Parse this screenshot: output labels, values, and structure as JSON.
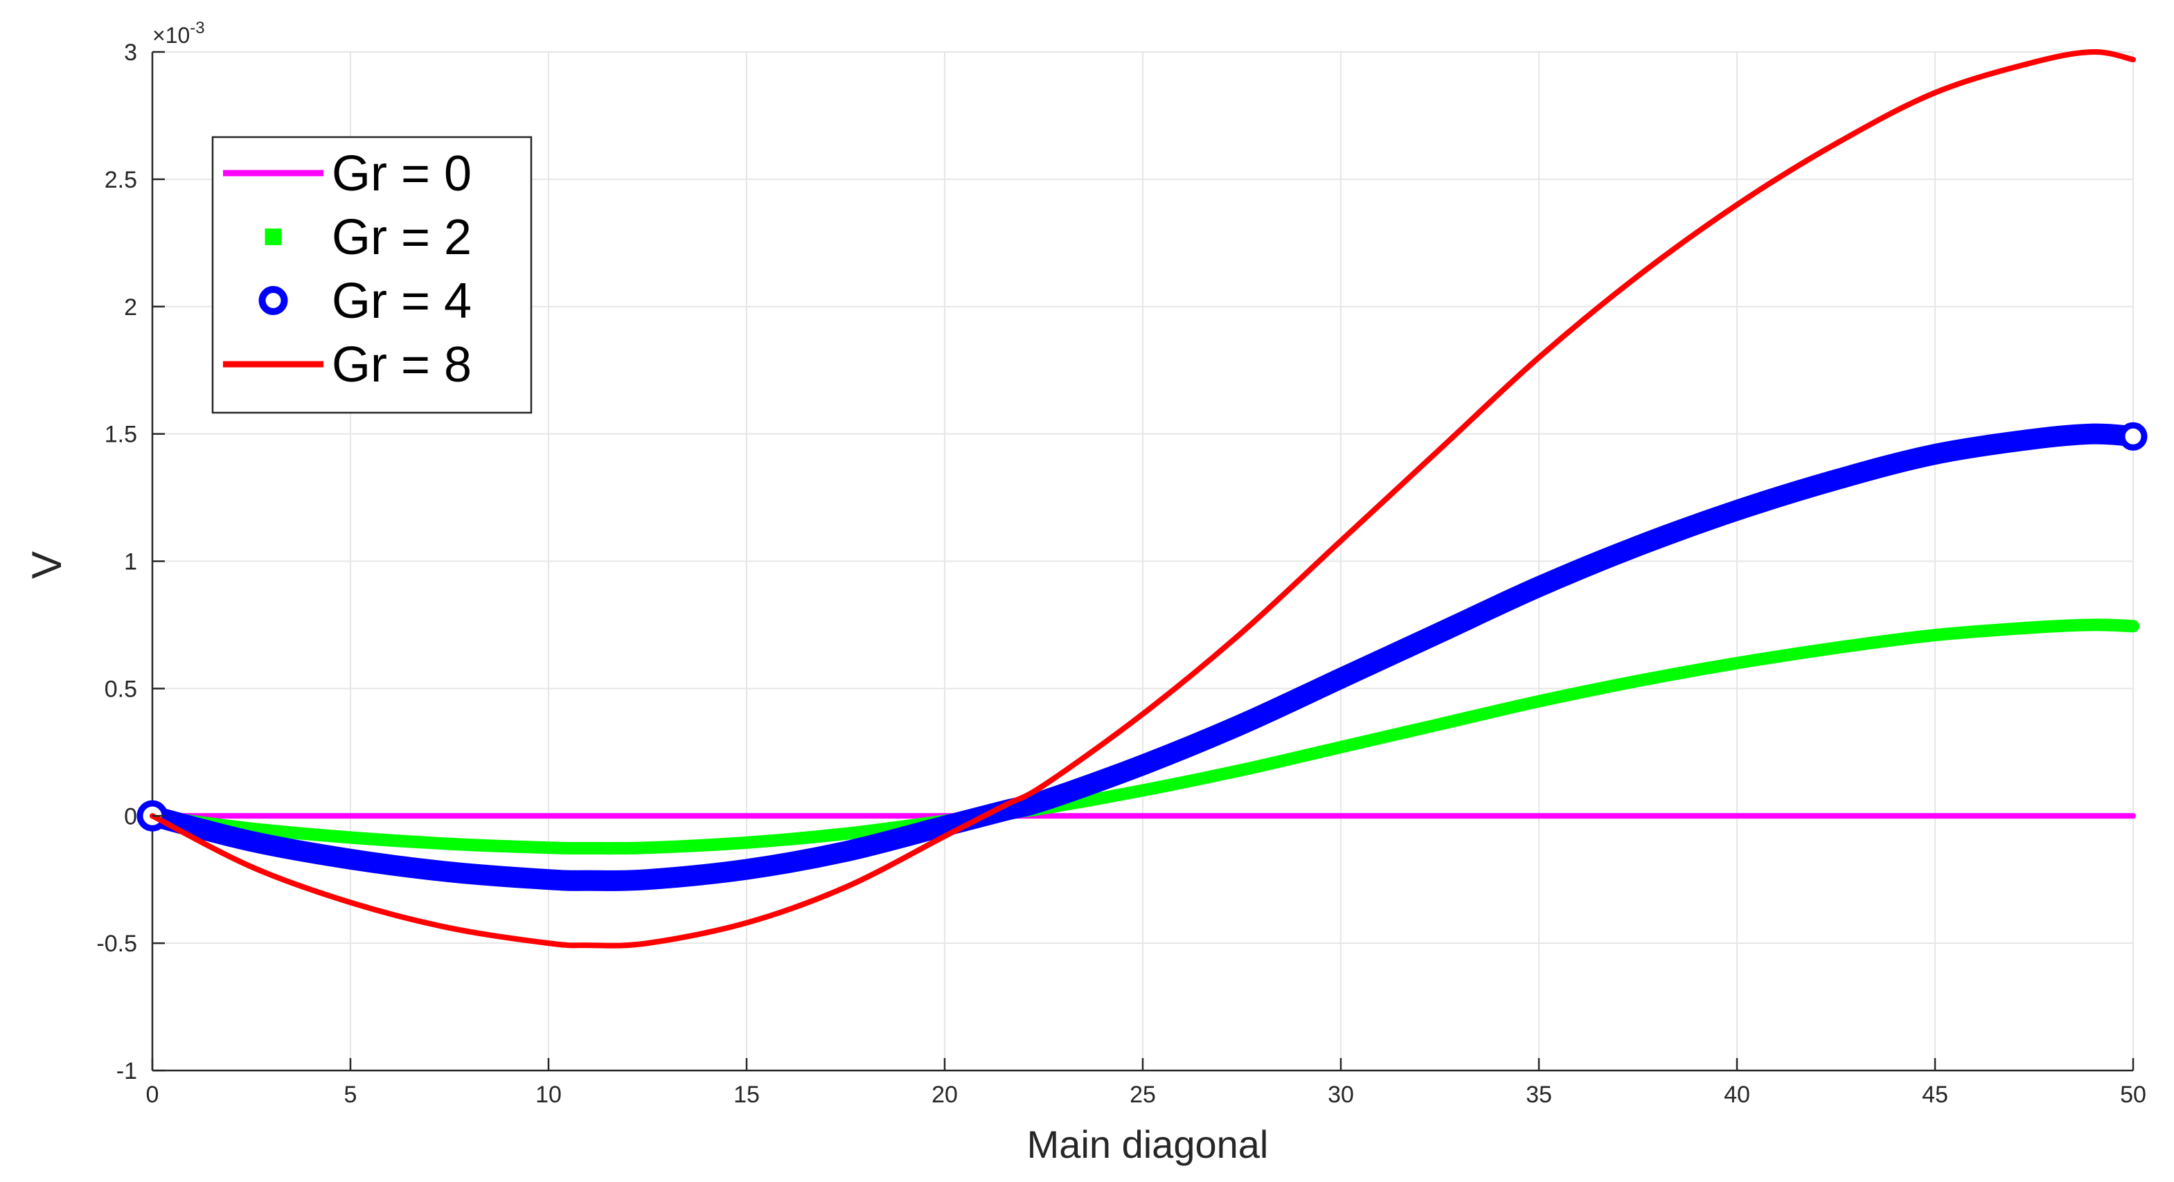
{
  "chart_data": {
    "type": "line",
    "xlabel": "Main diagonal",
    "ylabel": "V",
    "exponent_label": "×10",
    "exponent_power": "-3",
    "xlim": [
      0,
      50
    ],
    "ylim": [
      -1,
      3
    ],
    "y_scale_factor": 0.001,
    "xticks": [
      0,
      5,
      10,
      15,
      20,
      25,
      30,
      35,
      40,
      45,
      50
    ],
    "xtick_labels": [
      "0",
      "5",
      "10",
      "15",
      "20",
      "25",
      "30",
      "35",
      "40",
      "45",
      "50"
    ],
    "yticks": [
      -1,
      -0.5,
      0,
      0.5,
      1,
      1.5,
      2,
      2.5,
      3
    ],
    "ytick_labels": [
      "-1",
      "-0.5",
      "0",
      "0.5",
      "1",
      "1.5",
      "2",
      "2.5",
      "3"
    ],
    "grid": true,
    "legend_position": "top-left",
    "series": [
      {
        "name": "Gr = 0",
        "color": "#ff00ff",
        "style": "solid-line",
        "x": [
          0,
          5,
          10,
          15,
          20,
          25,
          30,
          35,
          40,
          45,
          50
        ],
        "y": [
          0,
          0,
          0,
          0,
          0,
          0,
          0,
          0,
          0,
          0,
          0
        ]
      },
      {
        "name": "Gr = 2",
        "color": "#00ff00",
        "style": "thick-markers",
        "x": [
          0,
          2.5,
          5,
          7.5,
          10,
          11,
          12.5,
          15,
          17.5,
          20,
          21.5,
          22.5,
          25,
          27.5,
          30,
          32.5,
          35,
          37.5,
          40,
          42.5,
          45,
          47.5,
          49,
          50
        ],
        "y": [
          0,
          -0.05,
          -0.085,
          -0.11,
          -0.125,
          -0.127,
          -0.125,
          -0.105,
          -0.07,
          -0.02,
          0.01,
          0.03,
          0.1,
          0.18,
          0.27,
          0.36,
          0.45,
          0.53,
          0.6,
          0.66,
          0.71,
          0.74,
          0.75,
          0.745
        ]
      },
      {
        "name": "Gr = 4",
        "color": "#0000ff",
        "style": "thick-circle-markers",
        "x": [
          0,
          2.5,
          5,
          7.5,
          10,
          11,
          12.5,
          15,
          17.5,
          20,
          21.5,
          22.5,
          25,
          27.5,
          30,
          32.5,
          35,
          37.5,
          40,
          42.5,
          45,
          47.5,
          49,
          50
        ],
        "y": [
          0,
          -0.1,
          -0.17,
          -0.22,
          -0.25,
          -0.254,
          -0.25,
          -0.21,
          -0.14,
          -0.04,
          0.02,
          0.06,
          0.2,
          0.36,
          0.54,
          0.72,
          0.9,
          1.06,
          1.2,
          1.32,
          1.42,
          1.48,
          1.5,
          1.49
        ]
      },
      {
        "name": "Gr = 8",
        "color": "#ff0000",
        "style": "solid-line",
        "x": [
          0,
          2.5,
          5,
          7.5,
          10,
          11,
          12.5,
          15,
          17.5,
          20,
          21.5,
          22.5,
          25,
          27.5,
          30,
          32.5,
          35,
          37.5,
          40,
          42.5,
          45,
          47.5,
          49,
          50
        ],
        "y": [
          0,
          -0.2,
          -0.34,
          -0.44,
          -0.5,
          -0.508,
          -0.5,
          -0.42,
          -0.28,
          -0.08,
          0.04,
          0.12,
          0.4,
          0.72,
          1.08,
          1.44,
          1.8,
          2.12,
          2.4,
          2.64,
          2.84,
          2.96,
          3.0,
          2.97
        ]
      }
    ]
  }
}
